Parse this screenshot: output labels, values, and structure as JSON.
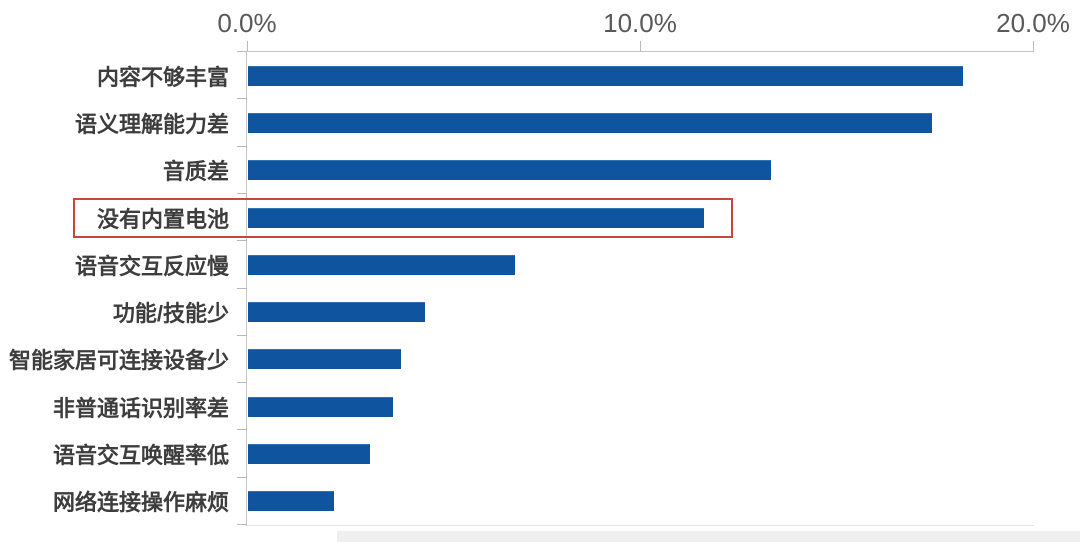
{
  "chart_data": {
    "type": "bar",
    "orientation": "horizontal",
    "title": "",
    "xlabel": "",
    "ylabel": "",
    "categories": [
      "内容不够丰富",
      "语义理解能力差",
      "音质差",
      "没有内置电池",
      "语音交互反应慢",
      "功能/技能少",
      "智能家居可连接设备少",
      "非普通话识别率差",
      "语音交互唤醒率低",
      "网络连接操作麻烦"
    ],
    "values": [
      18.2,
      17.4,
      13.3,
      11.6,
      6.8,
      4.5,
      3.9,
      3.7,
      3.1,
      2.2
    ],
    "unit": "%",
    "xlim": [
      0,
      20
    ],
    "x_ticks": [
      {
        "label": "0.0%",
        "value": 0
      },
      {
        "label": "10.0%",
        "value": 10
      },
      {
        "label": "20.0%",
        "value": 20
      }
    ],
    "grid": false,
    "legend": "none",
    "bar_color": "#0f549e",
    "axis_color": "#c4c4c4",
    "tick_text_color": "#595959",
    "label_text_color": "#3d3d3d",
    "highlight": {
      "category": "没有内置电池",
      "box_color": "#c8463c"
    }
  }
}
